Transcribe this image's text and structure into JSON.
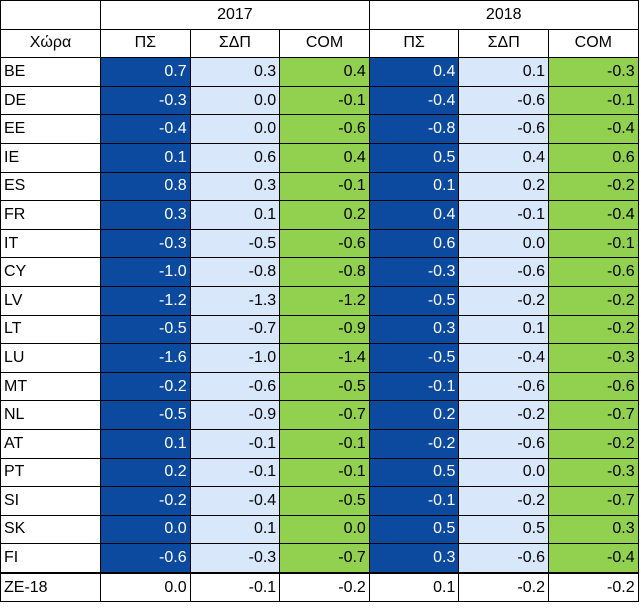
{
  "colors": {
    "ps": "#0b4a9e",
    "sdp": "#d9e7fb",
    "com": "#92d050",
    "border": "#000000"
  },
  "table": {
    "years": [
      "2017",
      "2018"
    ],
    "country_header": "Χώρα",
    "subheaders": [
      "ΠΣ",
      "ΣΔΠ",
      "COM"
    ],
    "rows": [
      {
        "country": "BE",
        "values": [
          "0.7",
          "0.3",
          "0.4",
          "0.4",
          "0.1",
          "-0.3"
        ]
      },
      {
        "country": "DE",
        "values": [
          "-0.3",
          "0.0",
          "-0.1",
          "-0.4",
          "-0.6",
          "-0.1"
        ]
      },
      {
        "country": "EE",
        "values": [
          "-0.4",
          "0.0",
          "-0.6",
          "-0.8",
          "-0.6",
          "-0.4"
        ]
      },
      {
        "country": "IE",
        "values": [
          "0.1",
          "0.6",
          "0.4",
          "0.5",
          "0.4",
          "0.6"
        ]
      },
      {
        "country": "ES",
        "values": [
          "0.8",
          "0.3",
          "-0.1",
          "0.1",
          "0.2",
          "-0.2"
        ]
      },
      {
        "country": "FR",
        "values": [
          "0.3",
          "0.1",
          "0.2",
          "0.4",
          "-0.1",
          "-0.4"
        ]
      },
      {
        "country": "IT",
        "values": [
          "-0.3",
          "-0.5",
          "-0.6",
          "0.6",
          "0.0",
          "-0.1"
        ]
      },
      {
        "country": "CY",
        "values": [
          "-1.0",
          "-0.8",
          "-0.8",
          "-0.3",
          "-0.6",
          "-0.6"
        ]
      },
      {
        "country": "LV",
        "values": [
          "-1.2",
          "-1.3",
          "-1.2",
          "-0.5",
          "-0.2",
          "-0.2"
        ]
      },
      {
        "country": "LT",
        "values": [
          "-0.5",
          "-0.7",
          "-0.9",
          "0.3",
          "0.1",
          "-0.2"
        ]
      },
      {
        "country": "LU",
        "values": [
          "-1.6",
          "-1.0",
          "-1.4",
          "-0.5",
          "-0.4",
          "-0.3"
        ]
      },
      {
        "country": "MT",
        "values": [
          "-0.2",
          "-0.6",
          "-0.5",
          "-0.1",
          "-0.6",
          "-0.6"
        ]
      },
      {
        "country": "NL",
        "values": [
          "-0.5",
          "-0.9",
          "-0.7",
          "0.2",
          "-0.2",
          "-0.7"
        ]
      },
      {
        "country": "AT",
        "values": [
          "0.1",
          "-0.1",
          "-0.1",
          "-0.2",
          "-0.6",
          "-0.2"
        ]
      },
      {
        "country": "PT",
        "values": [
          "0.2",
          "-0.1",
          "-0.1",
          "0.5",
          "0.0",
          "-0.3"
        ]
      },
      {
        "country": "SI",
        "values": [
          "-0.2",
          "-0.4",
          "-0.5",
          "-0.1",
          "-0.2",
          "-0.7"
        ]
      },
      {
        "country": "SK",
        "values": [
          "0.0",
          "0.1",
          "0.0",
          "0.5",
          "0.5",
          "0.3"
        ]
      },
      {
        "country": "FI",
        "values": [
          "-0.6",
          "-0.3",
          "-0.7",
          "0.3",
          "-0.6",
          "-0.4"
        ]
      }
    ],
    "total_row": {
      "country": "ZE-18",
      "values": [
        "0.0",
        "-0.1",
        "-0.2",
        "0.1",
        "-0.2",
        "-0.2"
      ]
    }
  }
}
